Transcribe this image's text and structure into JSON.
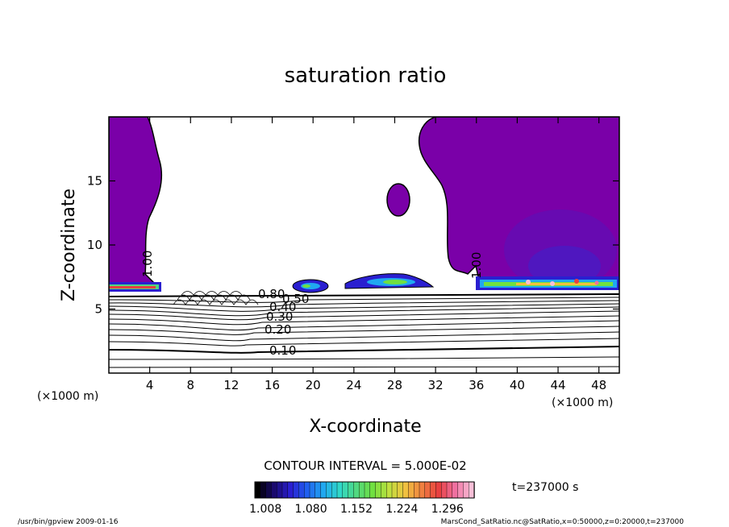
{
  "chart_data": {
    "type": "heatmap",
    "title": "saturation ratio",
    "xlabel": "X-coordinate",
    "ylabel": "Z-coordinate",
    "x_unit_left": "(×1000 m)",
    "x_unit_right": "(×1000 m)",
    "xlim": [
      0,
      50
    ],
    "ylim": [
      0,
      20
    ],
    "x_ticks": [
      4,
      8,
      12,
      16,
      20,
      24,
      28,
      32,
      36,
      40,
      44,
      48
    ],
    "y_ticks": [
      5,
      10,
      15
    ],
    "contour_interval_text": "CONTOUR INTERVAL = 5.000E-02",
    "time_text": "t=237000 s",
    "colorbar": {
      "ticks": [
        "1.008",
        "1.080",
        "1.152",
        "1.224",
        "1.296"
      ],
      "colors": [
        "#000000",
        "#1a0a6e",
        "#2a1fd0",
        "#2060f0",
        "#20a8f0",
        "#30d8c8",
        "#50d880",
        "#70e040",
        "#c0e040",
        "#f0c040",
        "#f08040",
        "#e84040",
        "#f070a0",
        "#f8c0d8"
      ]
    },
    "contour_labels": [
      "0.10",
      "0.20",
      "0.30",
      "0.40",
      "0.50",
      "0.80",
      "1.00",
      "1.00"
    ],
    "saturated_regions": [
      {
        "name": "left-column",
        "x": [
          0,
          4.5
        ],
        "z": [
          6.3,
          20
        ]
      },
      {
        "name": "right-column",
        "x": [
          30.5,
          50
        ],
        "z": [
          6.2,
          20
        ]
      },
      {
        "name": "isolated-cell",
        "x": [
          27,
          29
        ],
        "z": [
          12.5,
          15
        ]
      },
      {
        "name": "mid-cloud-a",
        "x": [
          18,
          22
        ],
        "z": [
          6.3,
          7.3
        ]
      },
      {
        "name": "mid-cloud-b",
        "x": [
          23,
          31
        ],
        "z": [
          6.4,
          7.8
        ]
      }
    ],
    "colors": {
      "supersaturated": "#7a00a8",
      "contour": "#000000"
    }
  },
  "footer": {
    "left": "/usr/bin/gpview   2009-01-16",
    "right": "MarsCond_SatRatio.nc@SatRatio,x=0:50000,z=0:20000,t=237000"
  }
}
